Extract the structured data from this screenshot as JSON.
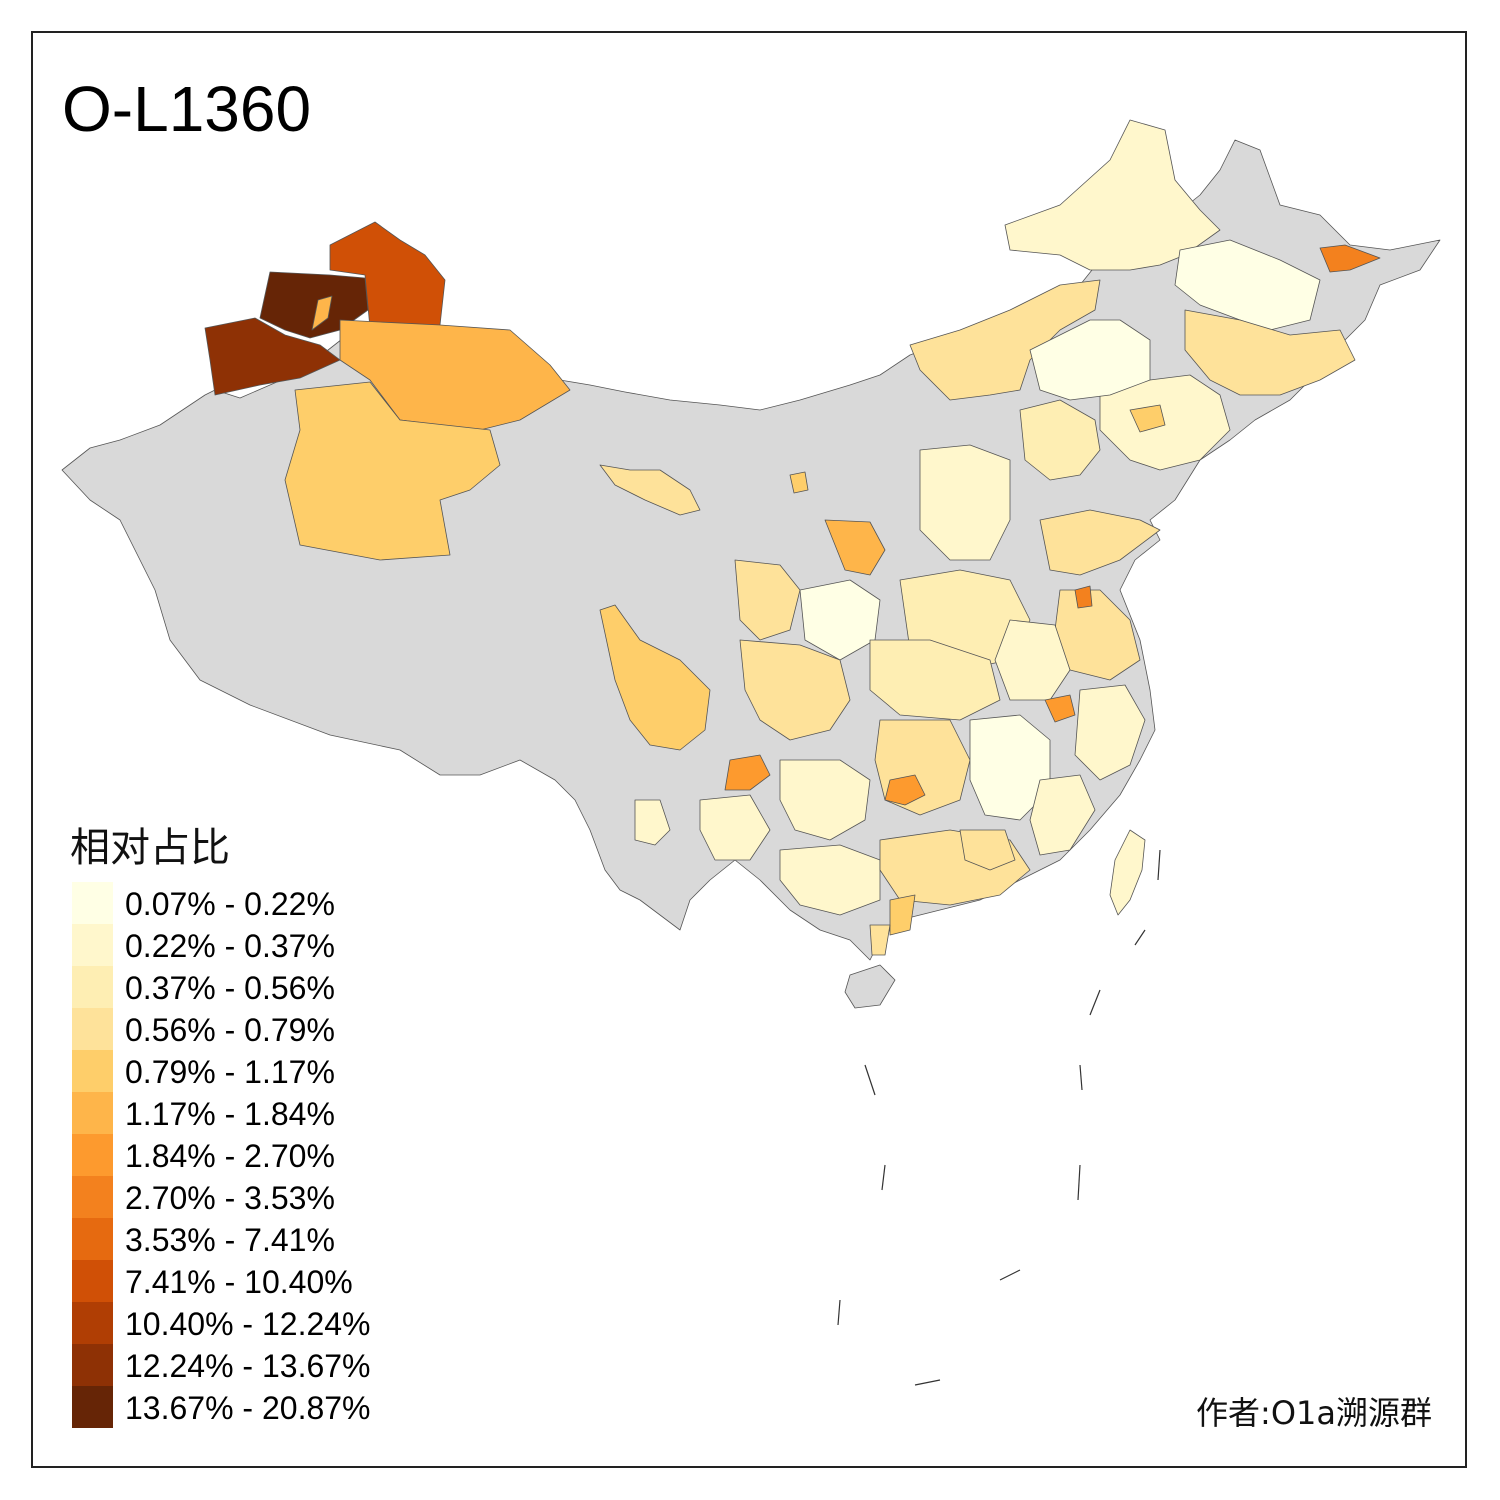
{
  "title": "O-L1360",
  "legend": {
    "title": "相对占比",
    "items": [
      {
        "label": "0.07% - 0.22%",
        "color": "#ffffe5"
      },
      {
        "label": "0.22% - 0.37%",
        "color": "#fff7cc"
      },
      {
        "label": "0.37% - 0.56%",
        "color": "#feeeb3"
      },
      {
        "label": "0.56% - 0.79%",
        "color": "#fee29a"
      },
      {
        "label": "0.79% - 1.17%",
        "color": "#fece6a"
      },
      {
        "label": "1.17% - 1.84%",
        "color": "#feb54a"
      },
      {
        "label": "1.84% - 2.70%",
        "color": "#fd9a2e"
      },
      {
        "label": "2.70% - 3.53%",
        "color": "#f3811e"
      },
      {
        "label": "3.53% - 7.41%",
        "color": "#e66a10"
      },
      {
        "label": "7.41% - 10.40%",
        "color": "#d05006"
      },
      {
        "label": "10.40% - 12.24%",
        "color": "#b03e04"
      },
      {
        "label": "12.24% - 13.67%",
        "color": "#8e3105"
      },
      {
        "label": "13.67% - 20.87%",
        "color": "#662506"
      }
    ]
  },
  "credit": "作者:O1a溯源群",
  "colors": {
    "no_data": "#d9d9d9",
    "border": "#555555"
  }
}
